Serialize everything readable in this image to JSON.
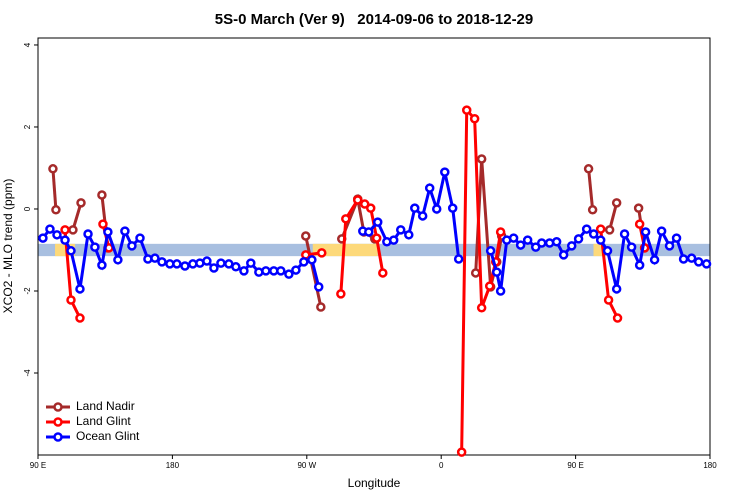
{
  "chart_data": {
    "type": "line",
    "title": "5S-0 March (Ver 9)   2014-09-06 to 2018-12-29",
    "x_label": "Longitude",
    "y_label": "XCO2 - MLO trend (ppm)",
    "xlim": [
      90,
      540
    ],
    "ylim": [
      -6.0,
      4.17
    ],
    "xticks": [
      {
        "value": 90,
        "label": "90 E"
      },
      180,
      {
        "value": 270,
        "label": "90 W"
      },
      {
        "value": 360,
        "label": "0"
      },
      {
        "value": 450,
        "label": "90 E"
      },
      {
        "value": 540,
        "label": "180"
      }
    ],
    "yticks": [
      -4,
      -2,
      0,
      2,
      4
    ],
    "legend": "bottom-left",
    "reference_band": {
      "color": "#a8bfe0",
      "ylim": [
        -1.15,
        -0.85
      ]
    },
    "highlight_bands": {
      "color": "#fdd97a",
      "ranges": [
        [
          101.4,
          114.8
        ],
        [
          274.0,
          317.5
        ],
        [
          462.0,
          469.4
        ]
      ]
    },
    "series": [
      {
        "name": "Land Nadir",
        "color": "#a52a2a",
        "x": [
          100.0,
          102.0,
          null,
          113.4,
          118.8,
          null,
          132.8,
          136.8,
          null,
          269.3,
          279.4,
          null,
          293.4,
          304.1,
          308.2,
          315.5,
          null,
          383.1,
          387.1,
          393.1,
          397.2,
          400.5,
          null,
          458.7,
          461.4,
          null,
          472.8,
          477.5,
          null,
          492.2,
          496.2
        ],
        "values": [
          0.98,
          -0.02,
          null,
          -0.51,
          0.15,
          null,
          0.34,
          -0.95,
          null,
          -0.66,
          -2.39,
          null,
          -0.73,
          0.24,
          -0.56,
          -0.73,
          null,
          -1.56,
          1.22,
          -1.9,
          -1.29,
          -0.66,
          null,
          0.98,
          -0.02,
          null,
          -0.51,
          0.15,
          null,
          0.02,
          -0.95
        ]
      },
      {
        "name": "Land Glint",
        "color": "#ff0000",
        "x": [
          108.1,
          112.1,
          118.1,
          null,
          133.5,
          137.5,
          null,
          269.3,
          280.0,
          null,
          292.8,
          296.1,
          304.1,
          308.8,
          312.8,
          316.8,
          320.9,
          null,
          373.7,
          377.1,
          382.4,
          387.1,
          392.5,
          396.5,
          399.8,
          null,
          466.8,
          472.1,
          478.1,
          null,
          492.9,
          496.2
        ],
        "values": [
          -0.51,
          -2.22,
          -2.66,
          null,
          -0.37,
          -0.95,
          null,
          -1.12,
          -1.07,
          null,
          -2.07,
          -0.24,
          0.22,
          0.12,
          0.02,
          -0.71,
          -1.56,
          null,
          -5.93,
          2.41,
          2.2,
          -2.41,
          -1.88,
          -1.29,
          -0.56,
          null,
          -0.49,
          -2.22,
          -2.66,
          null,
          -0.37,
          -0.95
        ]
      },
      {
        "name": "Ocean Glint",
        "color": "#0000ff",
        "x": [
          93.3,
          98.0,
          102.7,
          108.1,
          112.1,
          118.1,
          123.5,
          128.1,
          132.8,
          136.8,
          143.5,
          148.2,
          152.9,
          158.3,
          163.6,
          168.3,
          173.0,
          178.3,
          183.0,
          188.4,
          193.7,
          198.4,
          203.1,
          207.8,
          212.5,
          217.8,
          222.5,
          227.9,
          232.5,
          237.9,
          242.6,
          247.9,
          252.6,
          258.0,
          262.7,
          268.0,
          273.4,
          278.0,
          null,
          307.5,
          311.5,
          317.5,
          323.6,
          328.2,
          332.9,
          338.3,
          342.3,
          347.6,
          352.3,
          357.0,
          362.4,
          367.7,
          371.7,
          null,
          393.1,
          397.2,
          399.8,
          403.9,
          408.5,
          413.2,
          417.9,
          423.3,
          427.3,
          432.6,
          437.3,
          442.0,
          447.4,
          452.0,
          457.4,
          462.1,
          466.8,
          471.4,
          477.5,
          482.8,
          487.5,
          492.9,
          496.9,
          502.9,
          507.6,
          512.9,
          517.6,
          522.3,
          527.7,
          532.4,
          537.7
        ],
        "values": [
          -0.71,
          -0.49,
          -0.63,
          -0.76,
          -1.02,
          -1.95,
          -0.61,
          -0.93,
          -1.37,
          -0.56,
          -1.24,
          -0.54,
          -0.9,
          -0.71,
          -1.22,
          -1.2,
          -1.29,
          -1.34,
          -1.34,
          -1.39,
          -1.34,
          -1.32,
          -1.27,
          -1.44,
          -1.32,
          -1.34,
          -1.41,
          -1.51,
          -1.32,
          -1.54,
          -1.51,
          -1.51,
          -1.51,
          -1.59,
          -1.49,
          -1.29,
          -1.24,
          -1.9,
          null,
          -0.54,
          -0.56,
          -0.32,
          -0.8,
          -0.76,
          -0.51,
          -0.63,
          0.02,
          -0.17,
          0.51,
          0.0,
          0.9,
          0.02,
          -1.22,
          null,
          -1.02,
          -1.54,
          -2.0,
          -0.76,
          -0.71,
          -0.88,
          -0.76,
          -0.93,
          -0.83,
          -0.83,
          -0.8,
          -1.12,
          -0.9,
          -0.73,
          -0.49,
          -0.61,
          -0.76,
          -1.02,
          -1.95,
          -0.61,
          -0.93,
          -1.37,
          -0.56,
          -1.24,
          -0.54,
          -0.9,
          -0.71,
          -1.22,
          -1.2,
          -1.29,
          -1.34
        ]
      }
    ]
  }
}
